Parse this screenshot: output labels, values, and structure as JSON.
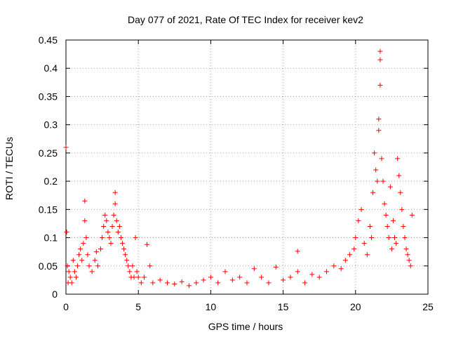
{
  "chart_data": {
    "type": "scatter",
    "title": "Day 077 of 2021, Rate Of TEC Index for receiver kev2",
    "xlabel": "GPS time / hours",
    "ylabel": "ROTI / TECUs",
    "xlim": [
      0,
      25
    ],
    "ylim": [
      0,
      0.45
    ],
    "xticks": [
      "0",
      "5",
      "10",
      "15",
      "20",
      "25"
    ],
    "yticks": [
      "0",
      "0.05",
      "0.1",
      "0.15",
      "0.2",
      "0.25",
      "0.3",
      "0.35",
      "0.4",
      "0.45"
    ],
    "grid": true,
    "marker": "+",
    "color": "#ff0000",
    "series": [
      {
        "name": "ROTI",
        "x": [
          0.0,
          0.05,
          0.1,
          0.15,
          0.2,
          0.3,
          0.4,
          0.5,
          0.6,
          0.7,
          0.8,
          0.9,
          1.0,
          1.1,
          1.2,
          1.3,
          1.3,
          1.4,
          1.5,
          1.6,
          1.8,
          2.0,
          2.1,
          2.2,
          2.4,
          2.5,
          2.6,
          2.7,
          2.8,
          2.9,
          3.0,
          3.1,
          3.2,
          3.3,
          3.4,
          3.4,
          3.5,
          3.6,
          3.7,
          3.8,
          3.9,
          4.0,
          4.1,
          4.2,
          4.3,
          4.4,
          4.5,
          4.6,
          4.7,
          4.8,
          4.9,
          5.0,
          5.2,
          5.4,
          5.6,
          5.8,
          6.0,
          6.5,
          7.0,
          7.5,
          8.0,
          8.5,
          9.0,
          9.5,
          10.0,
          10.5,
          11.0,
          11.5,
          12.0,
          12.5,
          13.0,
          13.5,
          14.0,
          14.5,
          15.0,
          15.5,
          16.0,
          16.0,
          16.5,
          17.0,
          17.5,
          18.0,
          18.5,
          19.0,
          19.3,
          19.6,
          19.9,
          20.0,
          20.2,
          20.4,
          20.6,
          20.8,
          21.0,
          21.1,
          21.2,
          21.3,
          21.4,
          21.5,
          21.6,
          21.6,
          21.7,
          21.7,
          21.7,
          21.8,
          21.9,
          22.0,
          22.1,
          22.2,
          22.3,
          22.4,
          22.5,
          22.6,
          22.7,
          22.8,
          22.9,
          23.0,
          23.1,
          23.2,
          23.3,
          23.4,
          23.5,
          23.6,
          23.7,
          23.8,
          23.9
        ],
        "y": [
          0.26,
          0.11,
          0.05,
          0.02,
          0.04,
          0.03,
          0.02,
          0.06,
          0.04,
          0.03,
          0.05,
          0.07,
          0.08,
          0.06,
          0.09,
          0.165,
          0.13,
          0.1,
          0.07,
          0.05,
          0.04,
          0.06,
          0.075,
          0.05,
          0.08,
          0.1,
          0.12,
          0.14,
          0.13,
          0.11,
          0.1,
          0.09,
          0.12,
          0.14,
          0.18,
          0.16,
          0.13,
          0.11,
          0.12,
          0.1,
          0.09,
          0.08,
          0.07,
          0.06,
          0.05,
          0.04,
          0.03,
          0.05,
          0.03,
          0.1,
          0.04,
          0.03,
          0.02,
          0.03,
          0.088,
          0.05,
          0.02,
          0.025,
          0.02,
          0.018,
          0.022,
          0.015,
          0.02,
          0.025,
          0.03,
          0.02,
          0.04,
          0.025,
          0.03,
          0.02,
          0.045,
          0.03,
          0.02,
          0.048,
          0.025,
          0.03,
          0.076,
          0.04,
          0.02,
          0.035,
          0.03,
          0.04,
          0.05,
          0.045,
          0.06,
          0.07,
          0.08,
          0.1,
          0.13,
          0.15,
          0.09,
          0.07,
          0.12,
          0.1,
          0.18,
          0.25,
          0.22,
          0.2,
          0.31,
          0.29,
          0.415,
          0.43,
          0.37,
          0.24,
          0.2,
          0.16,
          0.14,
          0.12,
          0.1,
          0.19,
          0.08,
          0.13,
          0.1,
          0.09,
          0.24,
          0.21,
          0.18,
          0.15,
          0.12,
          0.1,
          0.08,
          0.07,
          0.06,
          0.05,
          0.14
        ]
      }
    ]
  }
}
